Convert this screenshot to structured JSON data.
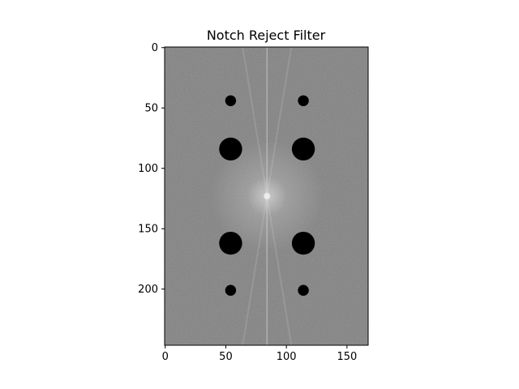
{
  "chart_data": {
    "type": "heatmap",
    "title": "Notch Reject Filter",
    "xlabel": "",
    "ylabel": "",
    "image_shape": {
      "rows": 247,
      "cols": 168
    },
    "xlim": [
      -0.5,
      167.5
    ],
    "ylim": [
      246.5,
      -0.5
    ],
    "x_ticks": [
      0,
      50,
      100,
      150
    ],
    "y_ticks": [
      0,
      50,
      100,
      150,
      200
    ],
    "colormap": "gray",
    "grid": false,
    "spectrum": {
      "center": {
        "x": 84,
        "y": 123
      },
      "vertical_line_x": 84,
      "background_level": 0.5
    },
    "notches": [
      {
        "x": 54,
        "y": 44,
        "radius": 4.5
      },
      {
        "x": 114,
        "y": 44,
        "radius": 4.5
      },
      {
        "x": 54,
        "y": 84,
        "radius": 9.5
      },
      {
        "x": 114,
        "y": 84,
        "radius": 9.5
      },
      {
        "x": 54,
        "y": 162,
        "radius": 9.5
      },
      {
        "x": 114,
        "y": 162,
        "radius": 9.5
      },
      {
        "x": 54,
        "y": 201,
        "radius": 4.5
      },
      {
        "x": 114,
        "y": 201,
        "radius": 4.5
      }
    ]
  }
}
